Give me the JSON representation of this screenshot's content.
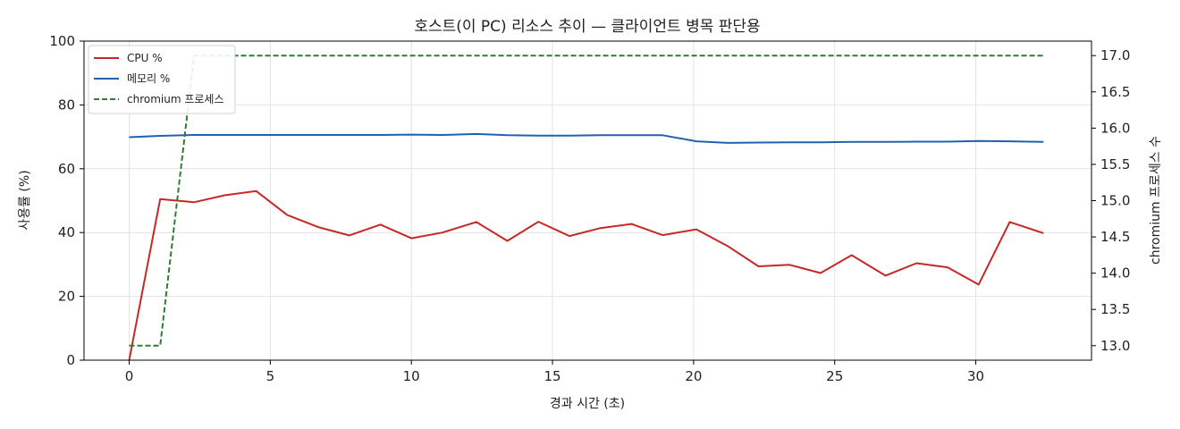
{
  "chart_data": {
    "type": "line",
    "title": "호스트(이 PC) 리소스 추이 — 클라이언트 병목 판단용",
    "xlabel": "경과 시간 (초)",
    "ylabel": "사용률 (%)",
    "y2label": "chromium 프로세스 수",
    "xlim": [
      -1.6,
      34.1
    ],
    "ylim": [
      0,
      100
    ],
    "y2lim": [
      12.8,
      17.2
    ],
    "xticks": [
      0,
      5,
      10,
      15,
      20,
      25,
      30
    ],
    "yticks": [
      0,
      20,
      40,
      60,
      80,
      100
    ],
    "y2ticks": [
      "13.0",
      "13.5",
      "14.0",
      "14.5",
      "15.0",
      "15.5",
      "16.0",
      "16.5",
      "17.0"
    ],
    "grid": true,
    "legend_position": "top-left",
    "x": [
      0,
      1.1,
      2.3,
      3.4,
      4.5,
      5.6,
      6.7,
      7.8,
      8.9,
      10.0,
      11.1,
      12.3,
      13.4,
      14.5,
      15.6,
      16.7,
      17.8,
      18.9,
      20.1,
      21.2,
      22.3,
      23.4,
      24.5,
      25.6,
      26.8,
      27.9,
      29.0,
      30.1,
      31.2,
      32.4
    ],
    "series": [
      {
        "name": "CPU %",
        "axis": "left",
        "color": "#c62828",
        "style": "solid",
        "values": [
          0,
          50.5,
          49.5,
          51.7,
          53,
          45.5,
          41.7,
          39.1,
          42.5,
          38.2,
          40,
          43.3,
          37.4,
          43.4,
          38.9,
          41.4,
          42.7,
          39.2,
          41,
          35.8,
          29.4,
          29.9,
          27.3,
          32.9,
          26.5,
          30.4,
          29.1,
          23.7,
          43.3,
          39.8
        ]
      },
      {
        "name": "메모리 %",
        "axis": "left",
        "color": "#1f62b0",
        "style": "solid",
        "values": [
          69.9,
          70.3,
          70.6,
          70.6,
          70.6,
          70.6,
          70.6,
          70.6,
          70.6,
          70.7,
          70.6,
          70.9,
          70.5,
          70.4,
          70.4,
          70.5,
          70.5,
          70.5,
          68.6,
          68.1,
          68.2,
          68.3,
          68.3,
          68.4,
          68.4,
          68.5,
          68.5,
          68.7,
          68.6,
          68.4
        ]
      },
      {
        "name": "chromium 프로세스",
        "axis": "right",
        "color": "#2e7d32",
        "style": "dashed",
        "values": [
          13,
          13,
          17,
          17,
          17,
          17,
          17,
          17,
          17,
          17,
          17,
          17,
          17,
          17,
          17,
          17,
          17,
          17,
          17,
          17,
          17,
          17,
          17,
          17,
          17,
          17,
          17,
          17,
          17,
          17
        ]
      }
    ]
  }
}
